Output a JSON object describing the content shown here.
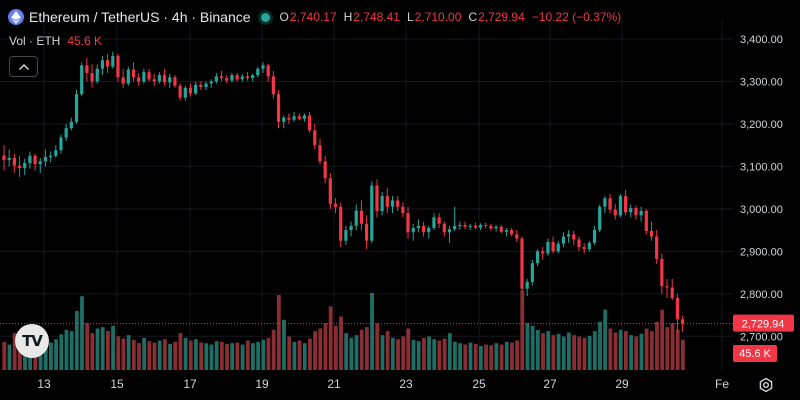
{
  "header": {
    "symbol_title": "Ethereum / TetherUS · 4h · Binance",
    "ohlc": [
      {
        "label": "O",
        "value": "2,740.17"
      },
      {
        "label": "H",
        "value": "2,748.41"
      },
      {
        "label": "L",
        "value": "2,710.00"
      },
      {
        "label": "C",
        "value": "2,729.94"
      }
    ],
    "change": "−10.22 (−0.37%)"
  },
  "volume_legend": {
    "label": "Vol · ETH",
    "value": "45.6 K"
  },
  "icons": {
    "symbol": "ethereum-logo-icon",
    "collapse": "chevron-up-icon",
    "watermark": "tradingview-logo-icon",
    "settings": "gear-icon"
  },
  "watermark_text": "TV",
  "colors": {
    "background": "#000000",
    "up": "#26a69a",
    "down": "#f23645",
    "up_volume": "#1f6e66",
    "down_volume": "#8a2e33",
    "text": "#d1d4dc",
    "grid": "#16181e"
  },
  "chart_data": {
    "type": "candlestick",
    "timeframe": "4h",
    "yticks": [
      "3,400.00",
      "3,300.00",
      "3,200.00",
      "3,100.00",
      "3,000.00",
      "2,900.00",
      "2,800.00",
      "2,700.00"
    ],
    "ytick_values": [
      3400,
      3300,
      3200,
      3100,
      3000,
      2900,
      2800,
      2700
    ],
    "ylim": [
      2660,
      3440
    ],
    "x_labels": [
      "13",
      "15",
      "17",
      "19",
      "21",
      "23",
      "25",
      "27",
      "29",
      "Fe"
    ],
    "last_price_label": "2,729.94",
    "last_price": 2729.94,
    "last_volume_label": "45.6 K",
    "candles": [
      [
        3126,
        3150,
        3090,
        3115
      ],
      [
        3115,
        3140,
        3100,
        3120
      ],
      [
        3120,
        3130,
        3085,
        3102
      ],
      [
        3102,
        3125,
        3075,
        3096
      ],
      [
        3096,
        3118,
        3080,
        3108
      ],
      [
        3108,
        3135,
        3095,
        3125
      ],
      [
        3125,
        3130,
        3090,
        3105
      ],
      [
        3105,
        3120,
        3085,
        3112
      ],
      [
        3112,
        3140,
        3100,
        3122
      ],
      [
        3122,
        3135,
        3110,
        3125
      ],
      [
        3125,
        3150,
        3120,
        3138
      ],
      [
        3138,
        3175,
        3130,
        3168
      ],
      [
        3168,
        3200,
        3160,
        3190
      ],
      [
        3190,
        3215,
        3185,
        3205
      ],
      [
        3205,
        3280,
        3200,
        3270
      ],
      [
        3270,
        3345,
        3265,
        3338
      ],
      [
        3338,
        3355,
        3300,
        3320
      ],
      [
        3320,
        3340,
        3285,
        3300
      ],
      [
        3300,
        3340,
        3295,
        3330
      ],
      [
        3330,
        3360,
        3315,
        3350
      ],
      [
        3350,
        3365,
        3320,
        3335
      ],
      [
        3335,
        3370,
        3330,
        3360
      ],
      [
        3360,
        3365,
        3300,
        3310
      ],
      [
        3310,
        3330,
        3285,
        3295
      ],
      [
        3295,
        3335,
        3290,
        3328
      ],
      [
        3328,
        3345,
        3300,
        3310
      ],
      [
        3310,
        3320,
        3290,
        3300
      ],
      [
        3300,
        3330,
        3295,
        3322
      ],
      [
        3322,
        3330,
        3300,
        3305
      ],
      [
        3305,
        3318,
        3290,
        3300
      ],
      [
        3300,
        3322,
        3295,
        3315
      ],
      [
        3315,
        3330,
        3290,
        3298
      ],
      [
        3298,
        3318,
        3285,
        3310
      ],
      [
        3310,
        3315,
        3285,
        3290
      ],
      [
        3290,
        3295,
        3255,
        3262
      ],
      [
        3262,
        3290,
        3255,
        3285
      ],
      [
        3285,
        3295,
        3265,
        3272
      ],
      [
        3272,
        3300,
        3268,
        3292
      ],
      [
        3292,
        3300,
        3280,
        3287
      ],
      [
        3287,
        3300,
        3280,
        3295
      ],
      [
        3295,
        3305,
        3285,
        3300
      ],
      [
        3300,
        3320,
        3295,
        3312
      ],
      [
        3312,
        3325,
        3300,
        3308
      ],
      [
        3308,
        3315,
        3295,
        3302
      ],
      [
        3302,
        3320,
        3298,
        3315
      ],
      [
        3315,
        3320,
        3300,
        3305
      ],
      [
        3305,
        3318,
        3300,
        3312
      ],
      [
        3312,
        3322,
        3302,
        3308
      ],
      [
        3308,
        3318,
        3300,
        3315
      ],
      [
        3315,
        3335,
        3310,
        3330
      ],
      [
        3330,
        3345,
        3320,
        3338
      ],
      [
        3338,
        3342,
        3300,
        3312
      ],
      [
        3312,
        3325,
        3260,
        3270
      ],
      [
        3270,
        3280,
        3190,
        3205
      ],
      [
        3205,
        3220,
        3190,
        3215
      ],
      [
        3215,
        3225,
        3200,
        3210
      ],
      [
        3210,
        3228,
        3205,
        3218
      ],
      [
        3218,
        3225,
        3208,
        3212
      ],
      [
        3212,
        3225,
        3205,
        3220
      ],
      [
        3220,
        3228,
        3180,
        3185
      ],
      [
        3185,
        3200,
        3140,
        3150
      ],
      [
        3150,
        3165,
        3105,
        3112
      ],
      [
        3112,
        3125,
        3060,
        3072
      ],
      [
        3072,
        3085,
        3000,
        3012
      ],
      [
        3012,
        3025,
        2990,
        3005
      ],
      [
        3005,
        3015,
        2910,
        2925
      ],
      [
        2925,
        2960,
        2915,
        2950
      ],
      [
        2950,
        2970,
        2935,
        2960
      ],
      [
        2960,
        3010,
        2950,
        2996
      ],
      [
        2996,
        3020,
        2950,
        2965
      ],
      [
        2965,
        2985,
        2905,
        2925
      ],
      [
        2925,
        3065,
        2920,
        3055
      ],
      [
        3055,
        3070,
        2980,
        2995
      ],
      [
        2995,
        3040,
        2985,
        3030
      ],
      [
        3030,
        3050,
        2990,
        3005
      ],
      [
        3005,
        3030,
        2990,
        3020
      ],
      [
        3020,
        3030,
        2995,
        3005
      ],
      [
        3005,
        3015,
        2980,
        2990
      ],
      [
        2990,
        3005,
        2930,
        2945
      ],
      [
        2945,
        2965,
        2925,
        2955
      ],
      [
        2955,
        2975,
        2945,
        2960
      ],
      [
        2960,
        2970,
        2935,
        2945
      ],
      [
        2945,
        2960,
        2930,
        2955
      ],
      [
        2955,
        2990,
        2950,
        2980
      ],
      [
        2980,
        2990,
        2955,
        2965
      ],
      [
        2965,
        2970,
        2935,
        2945
      ],
      [
        2945,
        2960,
        2920,
        2952
      ],
      [
        2952,
        3005,
        2948,
        2960
      ],
      [
        2960,
        2970,
        2950,
        2962
      ],
      [
        2962,
        2970,
        2952,
        2958
      ],
      [
        2958,
        2965,
        2950,
        2960
      ],
      [
        2960,
        2968,
        2952,
        2956
      ],
      [
        2956,
        2966,
        2950,
        2962
      ],
      [
        2962,
        2968,
        2954,
        2960
      ],
      [
        2960,
        2965,
        2948,
        2954
      ],
      [
        2954,
        2962,
        2946,
        2958
      ],
      [
        2958,
        2962,
        2942,
        2946
      ],
      [
        2946,
        2955,
        2935,
        2950
      ],
      [
        2950,
        2955,
        2935,
        2940
      ],
      [
        2940,
        2950,
        2922,
        2930
      ],
      [
        2930,
        2935,
        2805,
        2812
      ],
      [
        2812,
        2835,
        2795,
        2828
      ],
      [
        2828,
        2880,
        2820,
        2872
      ],
      [
        2872,
        2905,
        2865,
        2900
      ],
      [
        2900,
        2910,
        2880,
        2895
      ],
      [
        2895,
        2930,
        2890,
        2922
      ],
      [
        2922,
        2935,
        2895,
        2900
      ],
      [
        2900,
        2925,
        2895,
        2918
      ],
      [
        2918,
        2945,
        2910,
        2935
      ],
      [
        2935,
        2950,
        2920,
        2940
      ],
      [
        2940,
        2948,
        2915,
        2928
      ],
      [
        2928,
        2935,
        2900,
        2910
      ],
      [
        2910,
        2920,
        2895,
        2905
      ],
      [
        2905,
        2925,
        2900,
        2920
      ],
      [
        2920,
        2960,
        2915,
        2950
      ],
      [
        2950,
        3010,
        2945,
        3005
      ],
      [
        3005,
        3030,
        2990,
        3025
      ],
      [
        3025,
        3035,
        2990,
        2998
      ],
      [
        2998,
        3012,
        2975,
        2985
      ],
      [
        2985,
        3035,
        2980,
        3030
      ],
      [
        3030,
        3045,
        2985,
        2992
      ],
      [
        2992,
        3010,
        2980,
        3002
      ],
      [
        3002,
        3008,
        2975,
        2985
      ],
      [
        2985,
        3005,
        2970,
        2995
      ],
      [
        2995,
        3000,
        2940,
        2948
      ],
      [
        2948,
        2970,
        2925,
        2935
      ],
      [
        2935,
        2950,
        2870,
        2882
      ],
      [
        2882,
        2895,
        2800,
        2818
      ],
      [
        2818,
        2835,
        2790,
        2815
      ],
      [
        2815,
        2835,
        2785,
        2790
      ],
      [
        2790,
        2800,
        2710,
        2740
      ],
      [
        2740,
        2748,
        2710,
        2730
      ]
    ],
    "volumes": [
      42,
      38,
      55,
      48,
      40,
      52,
      44,
      36,
      50,
      41,
      46,
      53,
      60,
      58,
      88,
      110,
      70,
      55,
      62,
      64,
      58,
      66,
      50,
      47,
      52,
      45,
      40,
      48,
      43,
      41,
      44,
      46,
      39,
      42,
      55,
      48,
      44,
      46,
      41,
      40,
      38,
      43,
      42,
      39,
      40,
      41,
      38,
      44,
      40,
      42,
      45,
      48,
      60,
      112,
      75,
      50,
      42,
      44,
      40,
      47,
      58,
      62,
      70,
      95,
      66,
      80,
      55,
      48,
      52,
      60,
      64,
      115,
      70,
      52,
      58,
      48,
      46,
      50,
      62,
      45,
      43,
      48,
      50,
      46,
      44,
      47,
      55,
      42,
      40,
      38,
      41,
      39,
      36,
      38,
      37,
      40,
      38,
      42,
      41,
      44,
      118,
      70,
      66,
      60,
      55,
      58,
      52,
      54,
      50,
      56,
      52,
      50,
      48,
      51,
      58,
      72,
      90,
      62,
      56,
      60,
      58,
      52,
      50,
      54,
      62,
      58,
      72,
      90,
      64,
      70,
      60,
      45
    ]
  }
}
